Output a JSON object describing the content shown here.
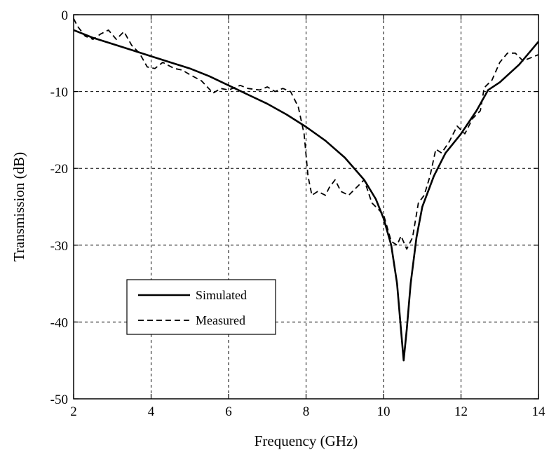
{
  "chart_data": {
    "type": "line",
    "xlabel": "Frequency (GHz)",
    "ylabel": "Transmission (dB)",
    "xlim": [
      2,
      14
    ],
    "ylim": [
      -50,
      0
    ],
    "xticks": [
      2,
      4,
      6,
      8,
      10,
      12,
      14
    ],
    "yticks": [
      0,
      -10,
      -20,
      -30,
      -40,
      -50
    ],
    "grid": true,
    "legend_position": "lower-left",
    "series": [
      {
        "name": "Simulated",
        "style": "solid",
        "points": [
          [
            2.0,
            -2.0
          ],
          [
            2.5,
            -3.0
          ],
          [
            3.0,
            -3.8
          ],
          [
            3.5,
            -4.6
          ],
          [
            4.0,
            -5.4
          ],
          [
            4.5,
            -6.2
          ],
          [
            5.0,
            -7.0
          ],
          [
            5.5,
            -8.0
          ],
          [
            6.0,
            -9.2
          ],
          [
            6.5,
            -10.4
          ],
          [
            7.0,
            -11.6
          ],
          [
            7.5,
            -13.0
          ],
          [
            8.0,
            -14.6
          ],
          [
            8.5,
            -16.4
          ],
          [
            9.0,
            -18.6
          ],
          [
            9.5,
            -21.5
          ],
          [
            9.8,
            -24.0
          ],
          [
            10.0,
            -26.5
          ],
          [
            10.2,
            -30.0
          ],
          [
            10.35,
            -35.0
          ],
          [
            10.45,
            -41.0
          ],
          [
            10.52,
            -45.0
          ],
          [
            10.6,
            -41.0
          ],
          [
            10.7,
            -35.0
          ],
          [
            10.85,
            -29.0
          ],
          [
            11.0,
            -25.0
          ],
          [
            11.3,
            -21.0
          ],
          [
            11.6,
            -18.0
          ],
          [
            12.0,
            -15.5
          ],
          [
            12.4,
            -12.5
          ],
          [
            12.7,
            -9.8
          ],
          [
            13.0,
            -8.8
          ],
          [
            13.5,
            -6.5
          ],
          [
            14.0,
            -3.5
          ]
        ]
      },
      {
        "name": "Measured",
        "style": "dashed",
        "points": [
          [
            2.0,
            -0.5
          ],
          [
            2.1,
            -1.5
          ],
          [
            2.3,
            -2.8
          ],
          [
            2.5,
            -3.2
          ],
          [
            2.7,
            -2.5
          ],
          [
            2.9,
            -2.0
          ],
          [
            3.1,
            -3.2
          ],
          [
            3.3,
            -2.2
          ],
          [
            3.5,
            -4.0
          ],
          [
            3.7,
            -5.0
          ],
          [
            3.9,
            -6.8
          ],
          [
            4.1,
            -7.0
          ],
          [
            4.3,
            -6.2
          ],
          [
            4.6,
            -7.0
          ],
          [
            4.8,
            -7.2
          ],
          [
            5.0,
            -7.8
          ],
          [
            5.3,
            -8.6
          ],
          [
            5.6,
            -10.2
          ],
          [
            5.8,
            -9.6
          ],
          [
            6.0,
            -9.8
          ],
          [
            6.3,
            -9.2
          ],
          [
            6.5,
            -9.6
          ],
          [
            6.8,
            -9.8
          ],
          [
            7.0,
            -9.4
          ],
          [
            7.2,
            -10.0
          ],
          [
            7.4,
            -9.6
          ],
          [
            7.6,
            -10.0
          ],
          [
            7.8,
            -12.0
          ],
          [
            7.95,
            -15.5
          ],
          [
            8.05,
            -21.0
          ],
          [
            8.15,
            -23.5
          ],
          [
            8.3,
            -23.0
          ],
          [
            8.5,
            -23.5
          ],
          [
            8.6,
            -22.5
          ],
          [
            8.75,
            -21.5
          ],
          [
            8.9,
            -23.0
          ],
          [
            9.1,
            -23.5
          ],
          [
            9.3,
            -22.5
          ],
          [
            9.5,
            -21.5
          ],
          [
            9.7,
            -24.5
          ],
          [
            9.9,
            -25.5
          ],
          [
            10.0,
            -26.0
          ],
          [
            10.2,
            -29.5
          ],
          [
            10.35,
            -30.0
          ],
          [
            10.45,
            -28.8
          ],
          [
            10.6,
            -30.5
          ],
          [
            10.75,
            -29.0
          ],
          [
            10.9,
            -24.5
          ],
          [
            11.05,
            -23.5
          ],
          [
            11.2,
            -21.0
          ],
          [
            11.35,
            -17.5
          ],
          [
            11.5,
            -18.0
          ],
          [
            11.7,
            -16.5
          ],
          [
            11.9,
            -14.5
          ],
          [
            12.1,
            -15.5
          ],
          [
            12.3,
            -13.5
          ],
          [
            12.5,
            -12.5
          ],
          [
            12.6,
            -9.5
          ],
          [
            12.8,
            -8.5
          ],
          [
            13.0,
            -6.2
          ],
          [
            13.2,
            -5.0
          ],
          [
            13.4,
            -5.0
          ],
          [
            13.6,
            -6.0
          ],
          [
            13.8,
            -5.6
          ],
          [
            14.0,
            -5.2
          ]
        ]
      }
    ]
  }
}
